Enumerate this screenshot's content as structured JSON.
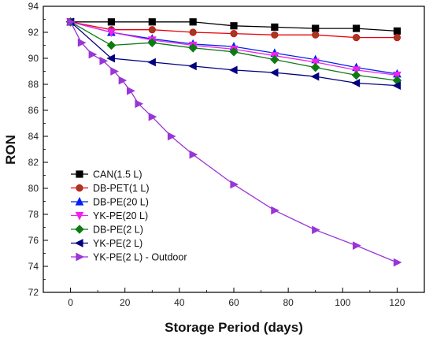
{
  "chart_data": {
    "type": "line",
    "title": "",
    "xlabel": "Storage Period (days)",
    "ylabel": "RON",
    "xlim": [
      -10,
      130
    ],
    "ylim": [
      72,
      94
    ],
    "xticks": [
      0,
      20,
      40,
      60,
      80,
      100,
      120
    ],
    "yticks": [
      72,
      74,
      76,
      78,
      80,
      82,
      84,
      86,
      88,
      90,
      92,
      94
    ],
    "grid": false,
    "legend_position": "lower-left",
    "series": [
      {
        "name": "CAN(1.5 L)",
        "color": "#000000",
        "marker": "square",
        "x": [
          0,
          15,
          30,
          45,
          60,
          75,
          90,
          105,
          120
        ],
        "y": [
          92.8,
          92.8,
          92.8,
          92.8,
          92.5,
          92.4,
          92.3,
          92.3,
          92.1
        ]
      },
      {
        "name": "DB-PET(1 L)",
        "color": "#e8000b",
        "marker": "circle",
        "markerFill": "#9b3d22",
        "x": [
          0,
          15,
          30,
          45,
          60,
          75,
          90,
          105,
          120
        ],
        "y": [
          92.8,
          92.2,
          92.2,
          92.0,
          91.9,
          91.8,
          91.8,
          91.6,
          91.6
        ]
      },
      {
        "name": "DB-PE(20 L)",
        "color": "#0022ee",
        "marker": "triangle-up",
        "x": [
          0,
          15,
          30,
          45,
          60,
          75,
          90,
          105,
          120
        ],
        "y": [
          92.8,
          92.0,
          91.5,
          91.1,
          90.9,
          90.4,
          89.9,
          89.3,
          88.8
        ]
      },
      {
        "name": "YK-PE(20 L)",
        "color": "#ee22ee",
        "marker": "triangle-down",
        "x": [
          0,
          15,
          30,
          45,
          60,
          75,
          90,
          105,
          120
        ],
        "y": [
          92.8,
          92.0,
          91.4,
          91.0,
          90.7,
          90.2,
          89.7,
          89.1,
          88.7
        ]
      },
      {
        "name": "DB-PE(2 L)",
        "color": "#0e7a12",
        "marker": "diamond",
        "x": [
          0,
          15,
          30,
          45,
          60,
          75,
          90,
          105,
          120
        ],
        "y": [
          92.8,
          91.0,
          91.2,
          90.8,
          90.5,
          89.9,
          89.3,
          88.7,
          88.3
        ]
      },
      {
        "name": "YK-PE(2 L)",
        "color": "#000080",
        "marker": "triangle-left",
        "x": [
          0,
          15,
          30,
          45,
          60,
          75,
          90,
          105,
          120
        ],
        "y": [
          92.8,
          90.0,
          89.7,
          89.4,
          89.1,
          88.9,
          88.6,
          88.1,
          87.9
        ]
      },
      {
        "name": "YK-PE(2 L) - Outdoor",
        "color": "#9a35d6",
        "marker": "triangle-right",
        "x": [
          0,
          4,
          8,
          12,
          16,
          19,
          22,
          25,
          30,
          37,
          45,
          60,
          75,
          90,
          105,
          120
        ],
        "y": [
          92.8,
          91.2,
          90.3,
          89.8,
          89.0,
          88.3,
          87.5,
          86.5,
          85.5,
          84.0,
          82.6,
          80.3,
          78.3,
          76.8,
          75.6,
          74.3
        ]
      }
    ]
  }
}
